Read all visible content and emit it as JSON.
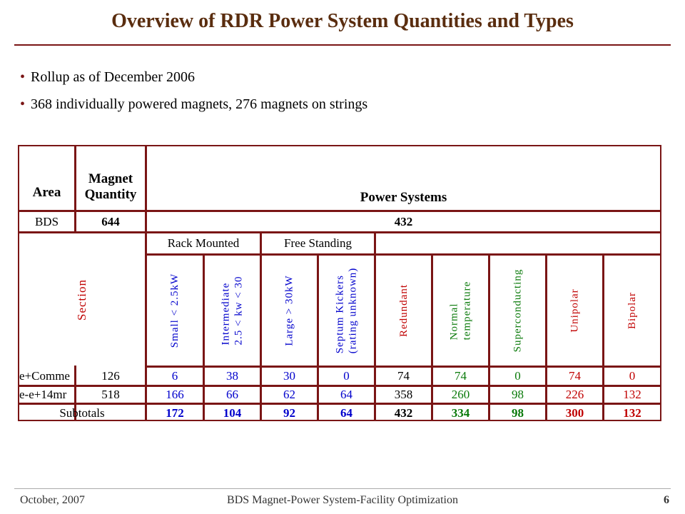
{
  "title": "Overview of RDR Power System Quantities and Types",
  "bullets": [
    "Rollup as of December 2006",
    "368 individually powered magnets, 276 magnets on strings"
  ],
  "table": {
    "h_area": "Area",
    "h_magnet": "Magnet Quantity",
    "h_power": "Power Systems",
    "bds_label": "BDS",
    "bds_qty": "644",
    "bds_power": "432",
    "rack": "Rack Mounted",
    "free": "Free Standing",
    "section": "Section",
    "col_small": "Small < 2.5kW",
    "col_inter1": "Intermediate",
    "col_inter2": "2.5 < kw < 30",
    "col_large": "Large > 30kW",
    "col_septum1": "Septum Kickers",
    "col_septum2": "(rating unknown)",
    "col_redundant": "Redundant",
    "col_normal1": "Normal",
    "col_normal2": "temperature",
    "col_super": "Superconducting",
    "col_uni": "Unipolar",
    "col_bi": "Bipolar",
    "rows": [
      {
        "label": "e+Comme",
        "qty": "126",
        "vals": [
          "6",
          "38",
          "30",
          "0",
          "74",
          "74",
          "0",
          "74",
          "0"
        ]
      },
      {
        "label": "e-e+14mr",
        "qty": "518",
        "vals": [
          "166",
          "66",
          "62",
          "64",
          "358",
          "260",
          "98",
          "226",
          "132"
        ]
      }
    ],
    "subtotal": {
      "label": "Subtotals",
      "vals": [
        "172",
        "104",
        "92",
        "64",
        "432",
        "334",
        "98",
        "300",
        "132"
      ]
    }
  },
  "colors": {
    "accent": "#7a1515",
    "title": "#5a2d0f",
    "blue": "#0000cc",
    "green": "#0a7a0a",
    "red": "#c00000"
  },
  "footer": {
    "date": "October, 2007",
    "center": "BDS Magnet-Power System-Facility Optimization",
    "page": "6"
  }
}
